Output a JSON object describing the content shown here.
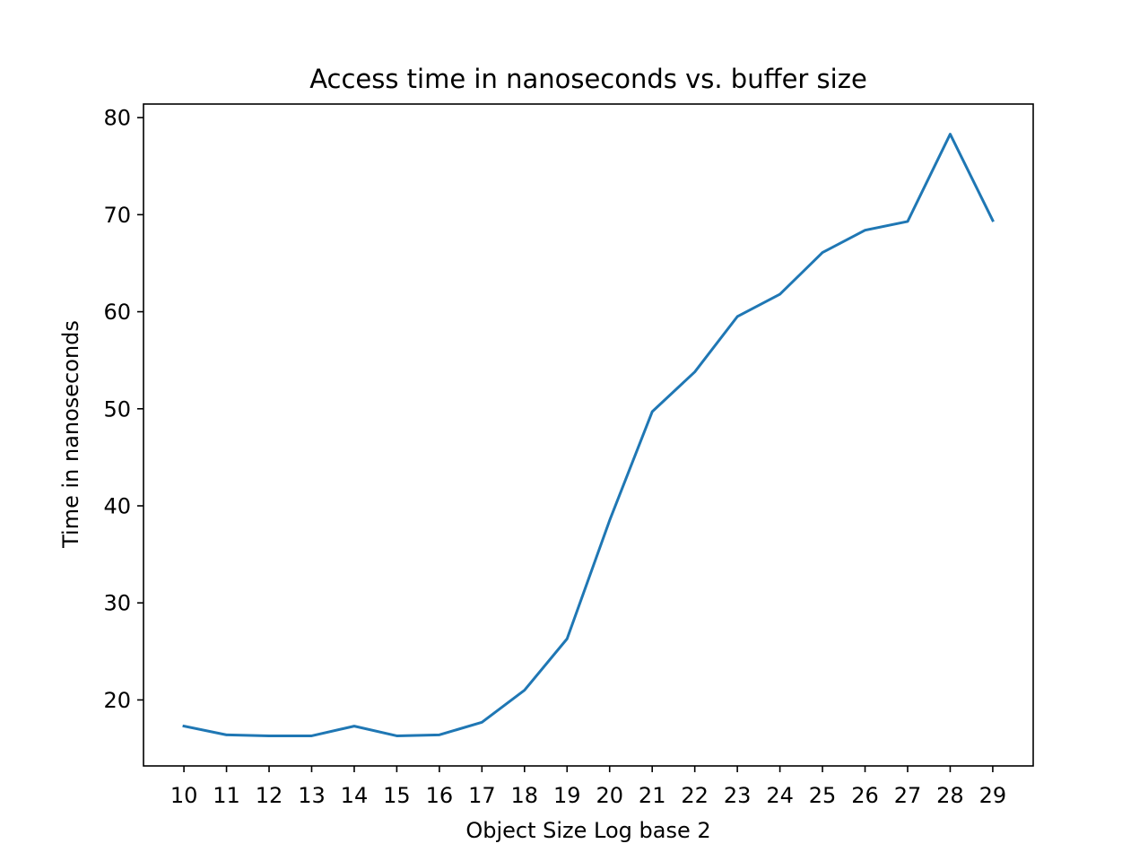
{
  "chart_data": {
    "type": "line",
    "title": "Access time in nanoseconds vs. buffer size",
    "xlabel": "Object Size Log base 2",
    "ylabel": "Time in nanoseconds",
    "x": [
      10,
      11,
      12,
      13,
      14,
      15,
      16,
      17,
      18,
      19,
      20,
      21,
      22,
      23,
      24,
      25,
      26,
      27,
      28,
      29
    ],
    "series": [
      {
        "values": [
          17.3,
          16.4,
          16.3,
          16.3,
          17.3,
          16.3,
          16.4,
          17.7,
          21.0,
          26.3,
          38.5,
          49.7,
          53.8,
          59.5,
          61.8,
          66.1,
          68.4,
          69.3,
          78.3,
          69.4
        ],
        "color": "#1f77b4"
      }
    ],
    "xticks": [
      "10",
      "11",
      "12",
      "13",
      "14",
      "15",
      "16",
      "17",
      "18",
      "19",
      "20",
      "21",
      "22",
      "23",
      "24",
      "25",
      "26",
      "27",
      "28",
      "29"
    ],
    "yticks": [
      "20",
      "30",
      "40",
      "50",
      "60",
      "70",
      "80"
    ],
    "xlim": [
      9.05,
      29.95
    ],
    "ylim": [
      13.2,
      81.4
    ],
    "grid": false,
    "legend": "none"
  }
}
